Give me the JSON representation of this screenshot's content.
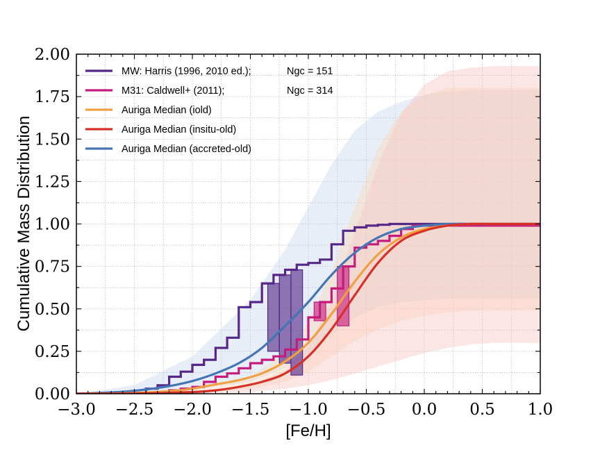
{
  "chart_data": {
    "type": "line",
    "xlabel": "[Fe/H]",
    "ylabel": "Cumulative Mass Distribution",
    "xlim": [
      -3.0,
      1.0
    ],
    "ylim": [
      0.0,
      2.0
    ],
    "x_ticks": [
      -3.0,
      -2.5,
      -2.0,
      -1.5,
      -1.0,
      -0.5,
      0.0,
      0.5,
      1.0
    ],
    "x_tick_labels": [
      "−3.0",
      "−2.5",
      "−2.0",
      "−1.5",
      "−1.0",
      "−0.5",
      "0.0",
      "0.5",
      "1.0"
    ],
    "y_ticks": [
      0.0,
      0.25,
      0.5,
      0.75,
      1.0,
      1.25,
      1.5,
      1.75,
      2.0
    ],
    "y_tick_labels": [
      "0.00",
      "0.25",
      "0.50",
      "0.75",
      "1.00",
      "1.25",
      "1.50",
      "1.75",
      "2.00"
    ],
    "grid": true,
    "legend_position": "top-left",
    "legend": [
      {
        "label": "MW: Harris (1996, 2010 ed.);",
        "extra": "Ngc = 151",
        "color": "#542788"
      },
      {
        "label": "M31: Caldwell+ (2011);",
        "extra": "Ngc = 314",
        "color": "#c51b7d"
      },
      {
        "label": "Auriga Median (iold)",
        "extra": "",
        "color": "#f0a040"
      },
      {
        "label": "Auriga Median (insitu-old)",
        "extra": "",
        "color": "#d73027"
      },
      {
        "label": "Auriga Median (accreted-old)",
        "extra": "",
        "color": "#4575b4"
      }
    ],
    "steps": [
      {
        "name": "MW",
        "color": "#542788",
        "x": [
          -3.0,
          -2.4,
          -2.3,
          -2.2,
          -2.1,
          -2.0,
          -1.9,
          -1.8,
          -1.7,
          -1.6,
          -1.5,
          -1.4,
          -1.3,
          -1.2,
          -1.1,
          -1.0,
          -0.9,
          -0.8,
          -0.7,
          -0.6,
          -0.5,
          -0.4,
          -0.3,
          -0.2,
          -0.1,
          1.0
        ],
        "y": [
          0.0,
          0.03,
          0.05,
          0.1,
          0.13,
          0.17,
          0.2,
          0.27,
          0.33,
          0.51,
          0.54,
          0.65,
          0.7,
          0.73,
          0.76,
          0.77,
          0.79,
          0.88,
          0.96,
          0.98,
          0.99,
          0.995,
          1.0,
          1.0,
          1.0,
          1.0
        ]
      },
      {
        "name": "M31",
        "color": "#c51b7d",
        "x": [
          -3.0,
          -2.3,
          -2.2,
          -2.1,
          -2.0,
          -1.9,
          -1.8,
          -1.7,
          -1.6,
          -1.5,
          -1.4,
          -1.3,
          -1.2,
          -1.1,
          -1.0,
          -0.9,
          -0.8,
          -0.7,
          -0.6,
          -0.5,
          -0.4,
          -0.3,
          -0.2,
          -0.1,
          1.0
        ],
        "y": [
          0.0,
          0.01,
          0.02,
          0.03,
          0.04,
          0.07,
          0.1,
          0.12,
          0.15,
          0.18,
          0.2,
          0.22,
          0.26,
          0.32,
          0.45,
          0.54,
          0.62,
          0.75,
          0.86,
          0.88,
          0.9,
          0.93,
          0.97,
          0.99,
          1.0
        ]
      }
    ],
    "boxes": [
      {
        "color": "#542788",
        "x0": -1.35,
        "x1": -1.25,
        "y0": 0.25,
        "y1": 0.65
      },
      {
        "color": "#542788",
        "x0": -1.25,
        "x1": -1.15,
        "y0": 0.18,
        "y1": 0.7
      },
      {
        "color": "#542788",
        "x0": -1.15,
        "x1": -1.05,
        "y0": 0.11,
        "y1": 0.73
      },
      {
        "color": "#c51b7d",
        "x0": -0.95,
        "x1": -0.85,
        "y0": 0.43,
        "y1": 0.54
      },
      {
        "color": "#c51b7d",
        "x0": -0.75,
        "x1": -0.65,
        "y0": 0.4,
        "y1": 0.75
      }
    ],
    "bands": [
      {
        "name": "accreted-old band",
        "color": "#c6d7ee",
        "x": [
          -3.0,
          -2.5,
          -2.0,
          -1.5,
          -1.2,
          -1.0,
          -0.8,
          -0.6,
          -0.4,
          -0.2,
          0.0,
          0.2,
          0.5,
          1.0
        ],
        "upper": [
          0.0,
          0.05,
          0.22,
          0.55,
          0.85,
          1.1,
          1.35,
          1.55,
          1.66,
          1.72,
          1.76,
          1.78,
          1.79,
          1.79
        ],
        "lower": [
          0.0,
          0.0,
          0.02,
          0.07,
          0.15,
          0.24,
          0.35,
          0.45,
          0.51,
          0.54,
          0.55,
          0.56,
          0.56,
          0.56
        ]
      },
      {
        "name": "iold band",
        "color": "#fcd9b8",
        "x": [
          -3.0,
          -2.0,
          -1.5,
          -1.2,
          -1.0,
          -0.8,
          -0.6,
          -0.4,
          -0.2,
          0.0,
          0.2,
          0.5,
          1.0
        ],
        "upper": [
          0.0,
          0.02,
          0.1,
          0.24,
          0.42,
          0.72,
          1.1,
          1.45,
          1.66,
          1.76,
          1.8,
          1.8,
          1.8
        ],
        "lower": [
          0.0,
          0.0,
          0.03,
          0.07,
          0.13,
          0.22,
          0.31,
          0.38,
          0.43,
          0.46,
          0.48,
          0.49,
          0.49
        ]
      },
      {
        "name": "insitu-old band",
        "color": "#f8c4c2",
        "x": [
          -3.0,
          -2.0,
          -1.5,
          -1.2,
          -1.0,
          -0.8,
          -0.6,
          -0.4,
          -0.2,
          0.0,
          0.2,
          0.4,
          0.6,
          1.0
        ],
        "upper": [
          0.0,
          0.01,
          0.05,
          0.14,
          0.28,
          0.55,
          0.95,
          1.35,
          1.65,
          1.82,
          1.9,
          1.92,
          1.93,
          1.93
        ],
        "lower": [
          0.0,
          0.0,
          0.01,
          0.03,
          0.05,
          0.08,
          0.12,
          0.16,
          0.2,
          0.24,
          0.27,
          0.29,
          0.3,
          0.3
        ]
      }
    ],
    "series": [
      {
        "name": "Auriga Median (accreted-old)",
        "color": "#4575b4",
        "x": [
          -3.0,
          -2.8,
          -2.6,
          -2.4,
          -2.2,
          -2.0,
          -1.8,
          -1.6,
          -1.4,
          -1.2,
          -1.0,
          -0.8,
          -0.6,
          -0.4,
          -0.2,
          0.0,
          0.2,
          0.4,
          0.6,
          0.8,
          1.0
        ],
        "y": [
          0.0,
          0.005,
          0.012,
          0.025,
          0.045,
          0.075,
          0.12,
          0.18,
          0.27,
          0.4,
          0.54,
          0.7,
          0.83,
          0.92,
          0.97,
          0.99,
          1.0,
          1.0,
          1.0,
          1.0,
          1.0
        ]
      },
      {
        "name": "Auriga Median (iold)",
        "color": "#f0a040",
        "x": [
          -3.0,
          -2.6,
          -2.2,
          -2.0,
          -1.8,
          -1.6,
          -1.4,
          -1.2,
          -1.0,
          -0.8,
          -0.6,
          -0.4,
          -0.2,
          0.0,
          0.2,
          0.4,
          0.6,
          1.0
        ],
        "y": [
          0.0,
          0.003,
          0.015,
          0.03,
          0.055,
          0.08,
          0.12,
          0.19,
          0.3,
          0.47,
          0.66,
          0.82,
          0.92,
          0.97,
          0.99,
          1.0,
          1.0,
          1.0
        ]
      },
      {
        "name": "Auriga Median (insitu-old)",
        "color": "#d73027",
        "x": [
          -3.0,
          -2.4,
          -2.0,
          -1.8,
          -1.6,
          -1.4,
          -1.2,
          -1.0,
          -0.8,
          -0.6,
          -0.4,
          -0.2,
          0.0,
          0.2,
          0.4,
          0.6,
          1.0
        ],
        "y": [
          0.0,
          0.003,
          0.01,
          0.02,
          0.04,
          0.07,
          0.12,
          0.22,
          0.38,
          0.58,
          0.77,
          0.9,
          0.96,
          0.99,
          1.0,
          1.0,
          1.0
        ]
      }
    ]
  }
}
